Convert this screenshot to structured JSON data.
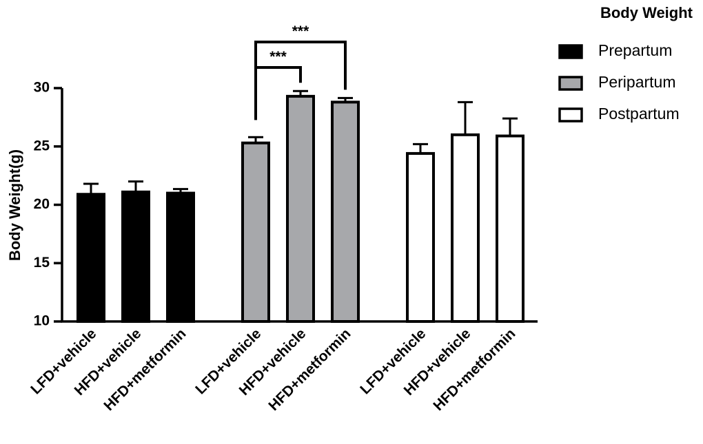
{
  "chart_data": {
    "type": "bar",
    "title": "Body Weight",
    "xlabel": "",
    "ylabel": "Body Weight(g)",
    "ylim": [
      10,
      30
    ],
    "yticks": [
      10,
      15,
      20,
      25,
      30
    ],
    "categories": [
      "LFD+vehicle",
      "HFD+vehicle",
      "HFD+metformin"
    ],
    "series": [
      {
        "name": "Prepartum",
        "color": "#000000",
        "values": [
          20.9,
          21.1,
          21.0
        ],
        "errors": [
          0.9,
          0.9,
          0.35
        ]
      },
      {
        "name": "Peripartum",
        "color": "#a7a8ab",
        "values": [
          25.3,
          29.3,
          28.8
        ],
        "errors": [
          0.5,
          0.45,
          0.35
        ]
      },
      {
        "name": "Postpartum",
        "color": "#ffffff",
        "values": [
          24.4,
          26.0,
          25.9
        ],
        "errors": [
          0.8,
          2.8,
          1.5
        ]
      }
    ],
    "significance": [
      {
        "label": "***",
        "series": "Peripartum",
        "from": "LFD+vehicle",
        "to": "HFD+vehicle"
      },
      {
        "label": "***",
        "series": "Peripartum",
        "from": "LFD+vehicle",
        "to": "HFD+metformin"
      }
    ],
    "legend": {
      "title": "Body Weight",
      "position": "top-right"
    },
    "grid": false
  }
}
